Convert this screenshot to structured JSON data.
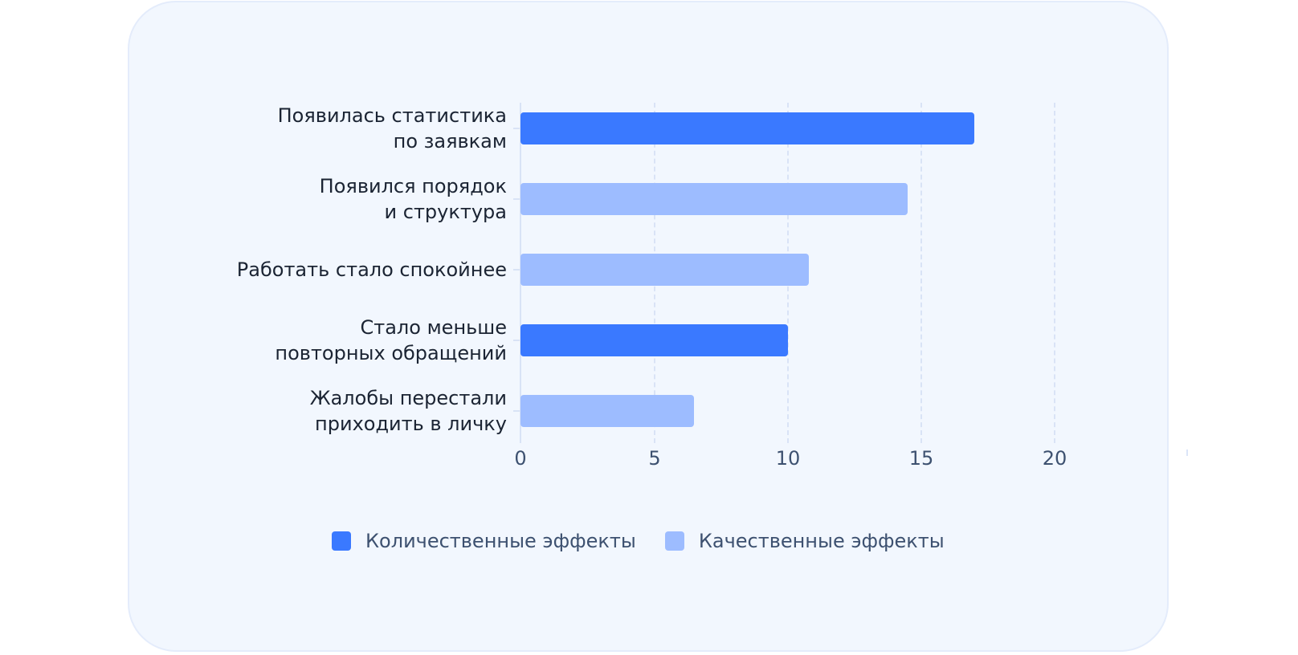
{
  "chart_data": {
    "type": "bar",
    "orientation": "horizontal",
    "title": "",
    "xlabel": "",
    "ylabel": "",
    "xlim": [
      0,
      20
    ],
    "x_ticks": [
      0,
      5,
      10,
      15,
      20
    ],
    "grid": "vertical dashed",
    "legend_position": "bottom",
    "categories": [
      "Появилась статистика по заявкам",
      "Появился порядок и структура",
      "Работать стало спокойнее",
      "Стало меньше повторных обращений",
      "Жалобы перестали приходить в личку"
    ],
    "values": [
      17,
      14.5,
      10.8,
      10,
      6.5
    ],
    "bar_series": [
      "Количественные эффекты",
      "Качественные эффекты",
      "Качественные эффекты",
      "Количественные эффекты",
      "Качественные эффекты"
    ],
    "series": [
      {
        "name": "Количественные эффекты",
        "color": "#3a79ff",
        "values": [
          17,
          null,
          null,
          10,
          null
        ]
      },
      {
        "name": "Качественные эффекты",
        "color": "#9dbcff",
        "values": [
          null,
          14.5,
          10.8,
          null,
          6.5
        ]
      }
    ]
  },
  "labels": {
    "rows": [
      {
        "line1": "Появилась статистика",
        "line2": "по заявкам"
      },
      {
        "line1": "Появился порядок",
        "line2": "и структура"
      },
      {
        "line1": "Работать стало спокойнее",
        "line2": ""
      },
      {
        "line1": "Стало меньше",
        "line2": "повторных обращений"
      },
      {
        "line1": "Жалобы перестали",
        "line2": "приходить в личку"
      }
    ],
    "x_ticks": [
      "0",
      "5",
      "10",
      "15",
      "20"
    ]
  },
  "legend": {
    "items": [
      {
        "label": "Количественные эффекты",
        "color": "#3a79ff"
      },
      {
        "label": "Качественные эффекты",
        "color": "#9dbcff"
      }
    ]
  },
  "colors": {
    "quantitative": "#3a79ff",
    "qualitative": "#9dbcff",
    "card_bg": "#f2f7fe",
    "grid": "#d9e3f6"
  }
}
